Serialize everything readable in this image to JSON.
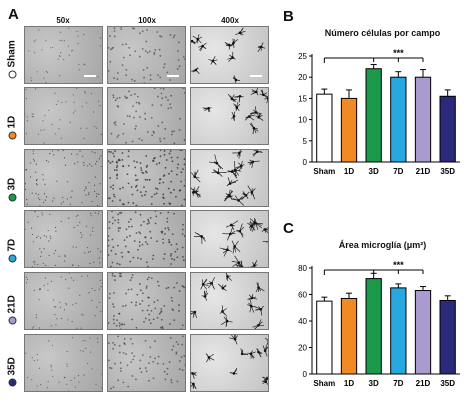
{
  "panel_a": {
    "letter": "A",
    "columns": [
      "50x",
      "100x",
      "400x"
    ],
    "rows": [
      {
        "label": "Sham",
        "color": "#ffffff"
      },
      {
        "label": "1D",
        "color": "#f08a24"
      },
      {
        "label": "3D",
        "color": "#1a9a4a"
      },
      {
        "label": "7D",
        "color": "#28a8e0"
      },
      {
        "label": "21D",
        "color": "#a99ad0"
      },
      {
        "label": "35D",
        "color": "#2a2a7a"
      }
    ]
  },
  "chart_data": [
    {
      "type": "bar",
      "panel": "B",
      "title": "Número células por campo",
      "categories": [
        "Sham",
        "1D",
        "3D",
        "7D",
        "21D",
        "35D"
      ],
      "values": [
        16,
        15,
        22,
        20,
        20,
        15.5
      ],
      "errors": [
        1.2,
        2.0,
        1.0,
        1.3,
        1.8,
        1.5
      ],
      "colors": [
        "#ffffff",
        "#f08a24",
        "#1a9a4a",
        "#28a8e0",
        "#a99ad0",
        "#2a2a7a"
      ],
      "ylim": [
        0,
        25
      ],
      "yticks": [
        0,
        5,
        10,
        15,
        20,
        25
      ],
      "significance": {
        "label": "***",
        "from": "Sham",
        "to": "21D",
        "ticks": [
          "3D",
          "7D",
          "21D"
        ]
      }
    },
    {
      "type": "bar",
      "panel": "C",
      "title": "Área microglía (μm²)",
      "categories": [
        "Sham",
        "1D",
        "3D",
        "7D",
        "21D",
        "35D"
      ],
      "values": [
        55,
        57,
        72,
        65,
        63,
        55.5
      ],
      "errors": [
        3,
        4,
        4,
        3,
        3,
        3.5
      ],
      "colors": [
        "#ffffff",
        "#f08a24",
        "#1a9a4a",
        "#28a8e0",
        "#a99ad0",
        "#2a2a7a"
      ],
      "ylim": [
        0,
        80
      ],
      "yticks": [
        0,
        20,
        40,
        60,
        80
      ],
      "significance": {
        "label": "***",
        "from": "Sham",
        "to": "21D",
        "ticks": [
          "3D",
          "7D",
          "21D"
        ]
      }
    }
  ]
}
